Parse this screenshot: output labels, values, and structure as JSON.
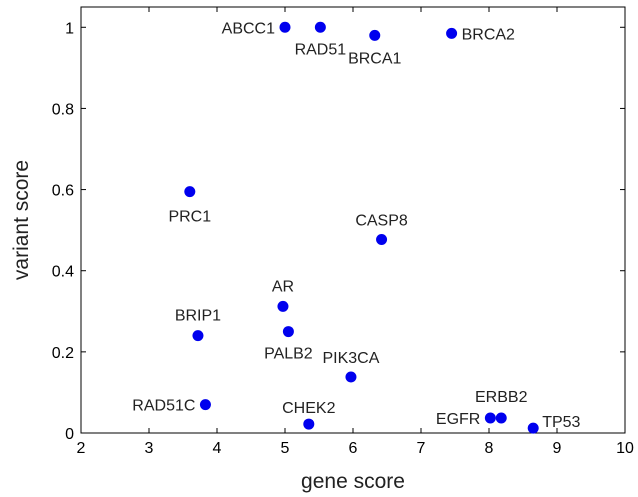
{
  "chart_data": {
    "type": "scatter",
    "title": "",
    "xlabel": "gene score",
    "ylabel": "variant score",
    "xlim": [
      2,
      10
    ],
    "ylim": [
      0,
      1.05
    ],
    "xticks": [
      "2",
      "3",
      "4",
      "5",
      "6",
      "7",
      "8",
      "9",
      "10"
    ],
    "yticks": [
      "0",
      "0.2",
      "0.4",
      "0.6",
      "0.8",
      "1"
    ],
    "grid": false,
    "marker_color": "#0000ee",
    "points": [
      {
        "label": "ABCC1",
        "x": 5.0,
        "y": 1.0
      },
      {
        "label": "RAD51",
        "x": 5.52,
        "y": 1.0
      },
      {
        "label": "BRCA1",
        "x": 6.32,
        "y": 0.98
      },
      {
        "label": "BRCA2",
        "x": 7.45,
        "y": 0.985
      },
      {
        "label": "PRC1",
        "x": 3.6,
        "y": 0.595
      },
      {
        "label": "CASP8",
        "x": 6.42,
        "y": 0.477
      },
      {
        "label": "AR",
        "x": 4.97,
        "y": 0.312
      },
      {
        "label": "BRIP1",
        "x": 3.72,
        "y": 0.24
      },
      {
        "label": "PALB2",
        "x": 5.05,
        "y": 0.25
      },
      {
        "label": "PIK3CA",
        "x": 5.97,
        "y": 0.138
      },
      {
        "label": "RAD51C",
        "x": 3.83,
        "y": 0.07
      },
      {
        "label": "CHEK2",
        "x": 5.35,
        "y": 0.022
      },
      {
        "label": "EGFR",
        "x": 8.02,
        "y": 0.037
      },
      {
        "label": "ERBB2",
        "x": 8.18,
        "y": 0.037
      },
      {
        "label": "TP53",
        "x": 8.65,
        "y": 0.012
      }
    ]
  }
}
